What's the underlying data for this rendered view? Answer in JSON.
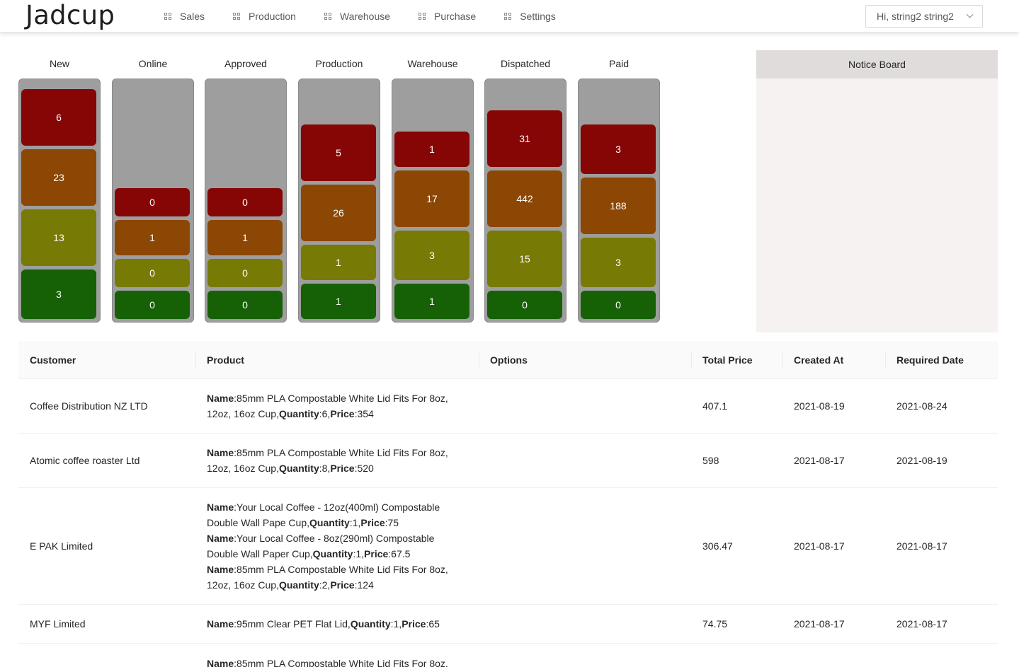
{
  "brand": {
    "logo": "Jadcup"
  },
  "nav": [
    {
      "label": "Sales"
    },
    {
      "label": "Production"
    },
    {
      "label": "Warehouse"
    },
    {
      "label": "Purchase"
    },
    {
      "label": "Settings"
    }
  ],
  "user_menu": {
    "label": "Hi, string2 string2"
  },
  "colors": {
    "red": "#860606",
    "orange": "#8c4705",
    "olive": "#787a06",
    "green": "#166106",
    "track": "#9e9e9e"
  },
  "board": {
    "columns": [
      {
        "title": "New",
        "counts": [
          "6",
          "23",
          "13",
          "3"
        ]
      },
      {
        "title": "Online",
        "counts": [
          "0",
          "1",
          "0",
          "0"
        ]
      },
      {
        "title": "Approved",
        "counts": [
          "0",
          "1",
          "0",
          "0"
        ]
      },
      {
        "title": "Production",
        "counts": [
          "5",
          "26",
          "1",
          "1"
        ]
      },
      {
        "title": "Warehouse",
        "counts": [
          "1",
          "17",
          "3",
          "1"
        ]
      },
      {
        "title": "Dispatched",
        "counts": [
          "31",
          "442",
          "15",
          "0"
        ]
      },
      {
        "title": "Paid",
        "counts": [
          "3",
          "188",
          "3",
          "0"
        ]
      }
    ]
  },
  "notice_board": {
    "title": "Notice Board"
  },
  "table": {
    "headers": [
      "Customer",
      "Product",
      "Options",
      "Total Price",
      "Created At",
      "Required Date"
    ],
    "item_keys": {
      "name": "Name",
      "quantity": "Quantity",
      "price": "Price"
    },
    "rows": [
      {
        "customer": "Coffee Distribution NZ LTD",
        "items": [
          {
            "name": "85mm PLA Compostable White Lid Fits For 8oz, 12oz, 16oz Cup",
            "quantity": "6",
            "price": "354"
          }
        ],
        "options": "",
        "total": "407.1",
        "created": "2021-08-19",
        "required": "2021-08-24"
      },
      {
        "customer": "Atomic coffee roaster Ltd",
        "items": [
          {
            "name": "85mm PLA Compostable White Lid Fits For 8oz, 12oz, 16oz Cup",
            "quantity": "8",
            "price": "520"
          }
        ],
        "options": "",
        "total": "598",
        "created": "2021-08-17",
        "required": "2021-08-19"
      },
      {
        "customer": "E PAK Limited",
        "items": [
          {
            "name": "Your Local Coffee - 12oz(400ml) Compostable Double Wall Pape Cup",
            "quantity": "1",
            "price": "75"
          },
          {
            "name": "Your Local Coffee - 8oz(290ml) Compostable Double Wall Paper Cup",
            "quantity": "1",
            "price": "67.5"
          },
          {
            "name": "85mm PLA Compostable White Lid Fits For 8oz, 12oz, 16oz Cup",
            "quantity": "2",
            "price": "124"
          }
        ],
        "options": "",
        "total": "306.47",
        "created": "2021-08-17",
        "required": "2021-08-17"
      },
      {
        "customer": "MYF Limited",
        "items": [
          {
            "name": "95mm Clear PET Flat Lid",
            "quantity": "1",
            "price": "65"
          }
        ],
        "options": "",
        "total": "74.75",
        "created": "2021-08-17",
        "required": "2021-08-17"
      },
      {
        "customer": "",
        "items": [
          {
            "name": "85mm PLA Compostable White Lid Fits For 8oz,",
            "quantity": "",
            "price": ""
          }
        ],
        "options": "",
        "total": "",
        "created": "",
        "required": ""
      }
    ]
  }
}
